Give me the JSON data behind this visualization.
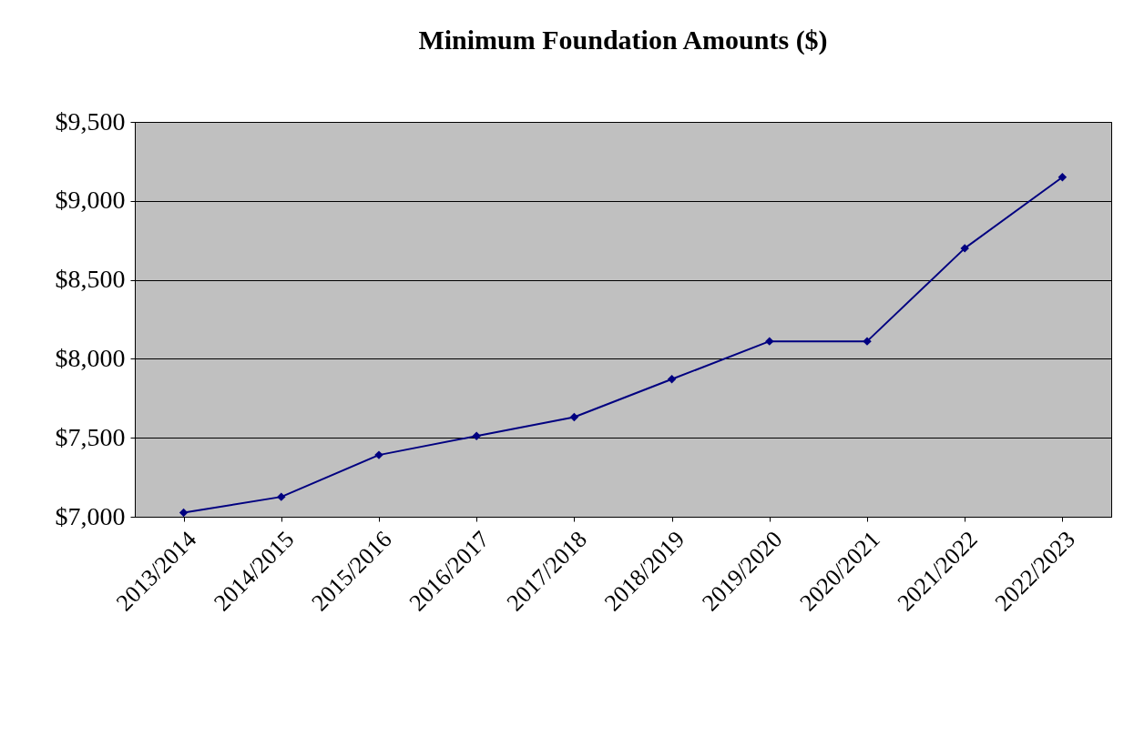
{
  "chart_data": {
    "type": "line",
    "title": "Minimum Foundation Amounts ($)",
    "categories": [
      "2013/2014",
      "2014/2015",
      "2015/2016",
      "2016/2017",
      "2017/2018",
      "2018/2019",
      "2019/2020",
      "2020/2021",
      "2021/2022",
      "2022/2023"
    ],
    "series": [
      {
        "color": "#000080",
        "values": [
          7026,
          7126,
          7391,
          7511,
          7631,
          7871,
          8111,
          8111,
          8700,
          9150
        ]
      }
    ],
    "ylim": [
      7000,
      9500
    ],
    "yticks": [
      {
        "value": 7000,
        "label": "$7,000"
      },
      {
        "value": 7500,
        "label": "$7,500"
      },
      {
        "value": 8000,
        "label": "$8,000"
      },
      {
        "value": 8500,
        "label": "$8,500"
      },
      {
        "value": 9000,
        "label": "$9,000"
      },
      {
        "value": 9500,
        "label": "$9,500"
      }
    ],
    "grid": "y",
    "marker": "diamond",
    "line_style": "solid"
  }
}
